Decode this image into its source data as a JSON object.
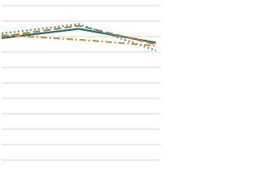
{
  "chart_data": {
    "type": "line",
    "categories": [
      null,
      null,
      null
    ],
    "series": [
      {
        "color": "#1f6f6a",
        "dash": "solid",
        "values": [
          7.9,
          8.5,
          7.6
        ]
      },
      {
        "color": "#c07a2c",
        "dash": "dashed",
        "values": [
          8.0,
          8.7,
          7.5
        ]
      },
      {
        "color": "#3a9bb5",
        "dash": "dotted",
        "values": [
          8.2,
          8.8,
          7.1
        ]
      },
      {
        "color": "#c8913c",
        "dash": "dashdot",
        "values": [
          8.1,
          7.8,
          7.4
        ]
      }
    ],
    "ylim": [
      0,
      10
    ],
    "yticks": [
      0,
      1,
      2,
      3,
      4,
      5,
      6,
      7,
      8,
      9,
      10
    ],
    "grid": true
  }
}
